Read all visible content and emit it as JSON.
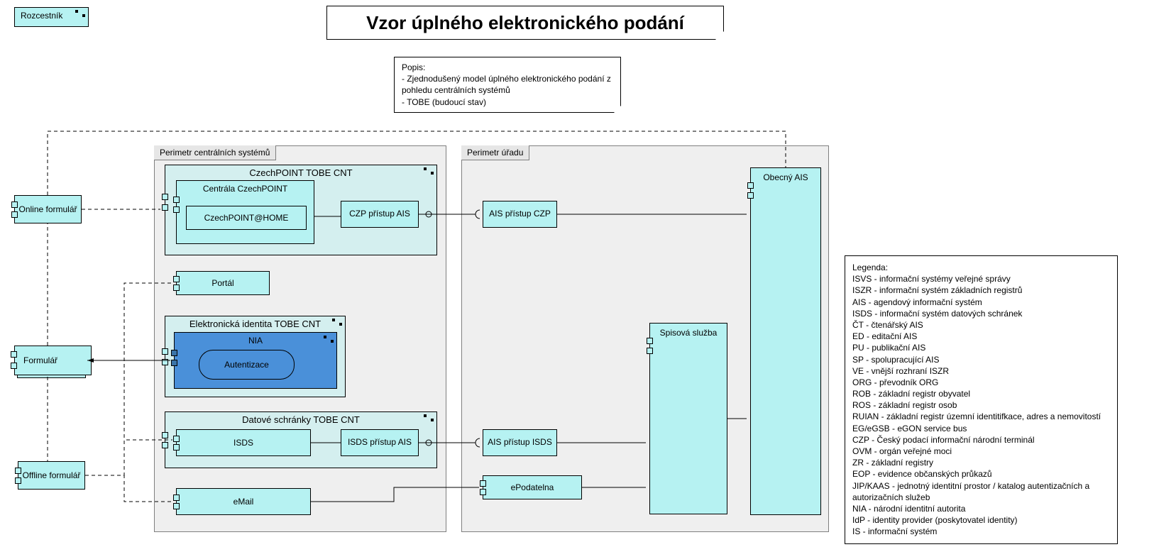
{
  "colors": {
    "background": "#ffffff",
    "group_fill": "#efefef",
    "group_border": "#7f7f7f",
    "cnt_fill": "#d4efef",
    "node_fill": "#b6f2f2",
    "deep_fill": "#4a90d9",
    "black": "#000000"
  },
  "typography": {
    "base_font": "Segoe UI, Arial, sans-serif",
    "base_size_pt": 9,
    "title_size_pt": 20,
    "title_weight": 700
  },
  "rozcestnik": {
    "label": "Rozcestník"
  },
  "title": "Vzor úplného elektronického podání",
  "description": {
    "heading": "Popis:",
    "lines": [
      "- Zjednodušený model úplného elektronického podání z pohledu centrálních systémů",
      "- TOBE (budoucí stav)"
    ]
  },
  "groups": {
    "central": {
      "label": "Perimetr centrálních systémů"
    },
    "office": {
      "label": "Perimetr úřadu"
    }
  },
  "outside": {
    "online": {
      "label": "Online formulář"
    },
    "formular": {
      "label": "Formulář"
    },
    "offline": {
      "label": "Offline formulář"
    }
  },
  "central": {
    "czp_cnt": {
      "label": "CzechPOINT TOBE CNT"
    },
    "czp_centrala": {
      "label": "Centrála CzechPOINT"
    },
    "czp_home": {
      "label": "CzechPOINT@HOME"
    },
    "czp_if": {
      "label": "CZP přístup AIS"
    },
    "portal": {
      "label": "Portál"
    },
    "eid_cnt": {
      "label": "Elektronická identita TOBE CNT"
    },
    "nia": {
      "label": "NIA"
    },
    "autentizace": {
      "label": "Autentizace"
    },
    "ds_cnt": {
      "label": "Datové schránky TOBE CNT"
    },
    "isds": {
      "label": "ISDS"
    },
    "isds_if": {
      "label": "ISDS přístup AIS"
    },
    "email": {
      "label": "eMail"
    }
  },
  "office": {
    "ais_czp": {
      "label": "AIS přístup CZP"
    },
    "ais_isds": {
      "label": "AIS přístup ISDS"
    },
    "epodatelna": {
      "label": "ePodatelna"
    },
    "spisova": {
      "label": "Spisová služba"
    },
    "obecny": {
      "label": "Obecný AIS"
    }
  },
  "legend": {
    "title": "Legenda:",
    "items": [
      "ISVS - informační systémy veřejné správy",
      "ISZR - informační systém základních registrů",
      "AIS - agendový informační systém",
      "ISDS - informační systém datových schránek",
      "ČT - čtenářský AIS",
      "ED - editační AIS",
      "PU - publikační AIS",
      "SP - spolupracující AIS",
      "VE - vnější rozhraní ISZR",
      "ORG - převodník ORG",
      "ROB - základní registr obyvatel",
      "ROS - základní registr osob",
      "RUIAN - základní registr územní identitifkace, adres a nemovitostí",
      "EG/eGSB - eGON service bus",
      "CZP - Český podací informační národní terminál",
      "OVM - orgán veřejné moci",
      "ZR - základní registry",
      "EOP - evidence občanských průkazů",
      "JIP/KAAS - jednotný identitní prostor / katalog autentizačních a autorizačních služeb",
      "NIA - národní identitní autorita",
      "IdP - identity provider (poskytovatel identity)",
      "IS - informační systém"
    ]
  },
  "diagram": {
    "type": "archimate-view",
    "connectors": [
      {
        "from": "online",
        "to": "czp_cnt",
        "style": "dashed"
      },
      {
        "from": "online",
        "to": "obecny",
        "style": "dashed",
        "via_top": true
      },
      {
        "from": "czp_if",
        "to": "ais_czp",
        "style": "solid"
      },
      {
        "from": "ais_czp",
        "to": "obecny",
        "style": "solid"
      },
      {
        "from": "formular",
        "to": "nia",
        "style": "solid_arrow_back"
      },
      {
        "from": "formular",
        "to": "online",
        "style": "dashed"
      },
      {
        "from": "formular",
        "to": "offline",
        "style": "dashed"
      },
      {
        "from": "offline",
        "to": "isds",
        "style": "dashed"
      },
      {
        "from": "offline",
        "to": "email",
        "style": "dashed"
      },
      {
        "from": "offline",
        "to": "portal",
        "style": "dashed"
      },
      {
        "from": "isds_if",
        "to": "ais_isds",
        "style": "solid"
      },
      {
        "from": "ais_isds",
        "to": "spisova",
        "style": "solid"
      },
      {
        "from": "email",
        "to": "epodatelna",
        "style": "solid"
      },
      {
        "from": "epodatelna",
        "to": "spisova",
        "style": "solid"
      },
      {
        "from": "spisova",
        "to": "obecny",
        "style": "solid"
      }
    ]
  }
}
